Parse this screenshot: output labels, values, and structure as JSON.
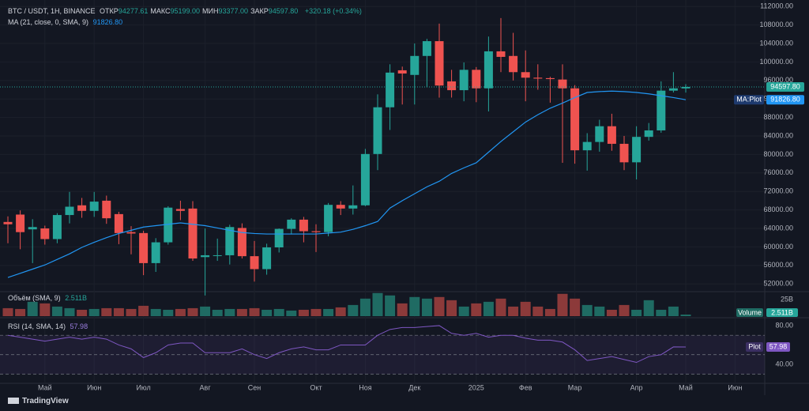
{
  "watermark": "TradingView",
  "chart_data": [
    {
      "type": "candlestick",
      "legend": {
        "symbol": "BTC / USDT, 1H, BINANCE",
        "items": [
          {
            "label": "ОТКР",
            "value": "94277.61"
          },
          {
            "label": "МАКС",
            "value": "95199.00"
          },
          {
            "label": "МИН",
            "value": "93377.00"
          },
          {
            "label": "ЗАКР",
            "value": "94597.80"
          }
        ],
        "change": "+320.18 (+0.34%)"
      },
      "last_label": "94597.80",
      "up_color": "#26a69a",
      "down_color": "#ef5350",
      "categories": [
        null,
        null,
        null,
        "Май",
        null,
        null,
        null,
        "Июн",
        null,
        null,
        null,
        "Июл",
        null,
        null,
        null,
        null,
        "Авг",
        null,
        null,
        null,
        "Сен",
        null,
        null,
        null,
        null,
        "Окт",
        null,
        null,
        null,
        "Ноя",
        null,
        null,
        null,
        "Дек",
        null,
        null,
        null,
        null,
        "2025",
        null,
        null,
        null,
        "Фев",
        null,
        null,
        null,
        "Мар",
        null,
        null,
        null,
        null,
        "Апр",
        null,
        null,
        null,
        "Май",
        null,
        null,
        null,
        "Июн"
      ],
      "open": [
        65400,
        67000,
        63800,
        64000,
        61700,
        66900,
        69000,
        67800,
        70000,
        67100,
        63200,
        63000,
        56500,
        61000,
        68200,
        68300,
        57800,
        58100,
        58200,
        64100,
        58000,
        55200,
        59900,
        63900,
        65900,
        63400,
        63200,
        69100,
        68300,
        69000,
        80100,
        90200,
        98200,
        97200,
        101300,
        104500,
        95800,
        93900,
        98300,
        94300,
        102300,
        101300,
        97800,
        96600,
        96500,
        96200,
        94300,
        80900,
        82700,
        86100,
        82300,
        78300,
        83800,
        85200,
        93800,
        94277.61,
        null,
        null,
        null,
        null
      ],
      "high": [
        66600,
        67900,
        66000,
        64600,
        67300,
        71900,
        70600,
        71900,
        71100,
        67600,
        64500,
        63500,
        61900,
        68800,
        70000,
        69900,
        64000,
        61800,
        64800,
        65100,
        61300,
        60700,
        64000,
        66200,
        66500,
        64900,
        69500,
        69900,
        73300,
        81200,
        93000,
        99500,
        99000,
        104000,
        105000,
        108300,
        98300,
        99900,
        98900,
        105500,
        109500,
        106300,
        102500,
        99500,
        96800,
        99500,
        95000,
        84600,
        87500,
        88800,
        84000,
        86100,
        86800,
        95800,
        97800,
        95199,
        null,
        null,
        null,
        null
      ],
      "low": [
        60800,
        59500,
        56500,
        60500,
        60800,
        65100,
        66300,
        66500,
        65000,
        60600,
        58400,
        53900,
        54600,
        60500,
        65800,
        57000,
        49500,
        57000,
        56200,
        57500,
        52500,
        54000,
        58800,
        62700,
        61000,
        58900,
        62300,
        66900,
        67000,
        68800,
        76600,
        85300,
        90800,
        90800,
        94500,
        92300,
        92300,
        91500,
        91300,
        89300,
        97800,
        96000,
        91500,
        94000,
        91200,
        78200,
        78000,
        76500,
        80600,
        80800,
        76600,
        74600,
        83000,
        84700,
        93400,
        93377,
        null,
        null,
        null,
        null
      ],
      "close": [
        64900,
        63200,
        64300,
        61700,
        66900,
        68700,
        67800,
        69800,
        66200,
        63000,
        62900,
        56500,
        61000,
        68500,
        67800,
        57500,
        58200,
        58200,
        64300,
        58000,
        55200,
        59900,
        63900,
        65900,
        63400,
        63200,
        69100,
        68300,
        69000,
        80100,
        90200,
        97700,
        97500,
        101300,
        104500,
        94900,
        93900,
        98300,
        94300,
        102300,
        101100,
        97800,
        96600,
        96400,
        96300,
        94300,
        80900,
        82700,
        86100,
        82300,
        78300,
        83800,
        85200,
        93800,
        94300,
        94597.8,
        null,
        null,
        null,
        null
      ],
      "ma": {
        "name": "MA (21, close, 0, SMA, 9)",
        "value_label": "91826.80",
        "plot_label": "MA:Plot",
        "color": "#2196f3",
        "values": [
          53400,
          54300,
          55200,
          56100,
          57300,
          58500,
          59900,
          61000,
          62000,
          62900,
          63600,
          64300,
          64600,
          64900,
          65200,
          64900,
          64600,
          64100,
          63600,
          63100,
          62900,
          62800,
          62800,
          62800,
          62800,
          62800,
          63000,
          63200,
          63800,
          64600,
          65500,
          68400,
          70000,
          71500,
          73000,
          74200,
          75900,
          77100,
          78200,
          80500,
          82800,
          84900,
          87000,
          88600,
          90000,
          91100,
          92300,
          93400,
          93600,
          93700,
          93600,
          93400,
          93100,
          92700,
          92300,
          91826.8,
          null,
          null,
          null,
          null
        ]
      },
      "ylim": [
        50500,
        113400
      ],
      "yticks": [
        {
          "value": 52000,
          "label": "52000.00"
        },
        {
          "value": 56000,
          "label": "56000.00"
        },
        {
          "value": 60000,
          "label": "60000.00"
        },
        {
          "value": 64000,
          "label": "64000.00"
        },
        {
          "value": 68000,
          "label": "68000.00"
        },
        {
          "value": 72000,
          "label": "72000.00"
        },
        {
          "value": 76000,
          "label": "76000.00"
        },
        {
          "value": 80000,
          "label": "80000.00"
        },
        {
          "value": 84000,
          "label": "84000.00"
        },
        {
          "value": 88000,
          "label": "88000.00"
        },
        {
          "value": 92000,
          "label": "92000.00"
        },
        {
          "value": 96000,
          "label": "96000.00"
        },
        {
          "value": 100000,
          "label": "100000.00"
        },
        {
          "value": 104000,
          "label": "104000.00"
        },
        {
          "value": 108000,
          "label": "108000.00"
        },
        {
          "value": 112000,
          "label": "112000.00"
        }
      ],
      "grid": true
    },
    {
      "type": "bar",
      "title": "Объём (SMA, 9)",
      "value_label": "2.511B",
      "plot_label": "Volume",
      "values": [
        12,
        10.8,
        21.6,
        19.2,
        14.4,
        12,
        9.6,
        10.8,
        12,
        12,
        10.8,
        15.6,
        10.8,
        9.6,
        10.8,
        12,
        14.4,
        9.6,
        10.8,
        10.8,
        12,
        9.6,
        10.8,
        8.4,
        9.6,
        10.8,
        10.8,
        13.2,
        16.8,
        26.4,
        34.8,
        31.2,
        19.2,
        28.8,
        26.4,
        28.8,
        24,
        14.4,
        19.2,
        21.6,
        26.4,
        14.4,
        21.6,
        14.4,
        10.8,
        33.6,
        26.4,
        16.8,
        14.4,
        9.6,
        16.8,
        9.6,
        24,
        9.6,
        14.4,
        2.4,
        null,
        null,
        null,
        null
      ],
      "ylim": [
        0,
        35.7
      ],
      "yticks": [
        {
          "value": 25,
          "label": "25B"
        }
      ]
    },
    {
      "type": "line",
      "title": "RSI (14, SMA, 14)",
      "value_label": "57.98",
      "plot_label": "Plot",
      "color": "#7e57c2",
      "values": [
        70,
        68,
        66,
        64,
        66,
        68,
        66,
        68,
        66,
        60,
        56,
        47,
        52,
        60,
        62,
        62,
        52,
        52,
        52,
        56,
        50,
        46,
        52,
        56,
        58,
        55,
        55,
        60,
        60,
        60,
        70,
        76,
        78,
        78,
        79,
        80,
        72,
        70,
        72,
        68,
        70,
        70,
        67,
        65,
        65,
        63,
        55,
        44,
        46,
        48,
        45,
        42,
        48,
        50,
        58,
        57.98,
        null,
        null,
        null,
        null
      ],
      "levels": [
        70,
        50,
        30
      ],
      "ylim": [
        20.4,
        87.3
      ],
      "yticks": [
        {
          "value": 80,
          "label": "80.00"
        },
        {
          "value": 40,
          "label": "40.00"
        }
      ]
    }
  ]
}
